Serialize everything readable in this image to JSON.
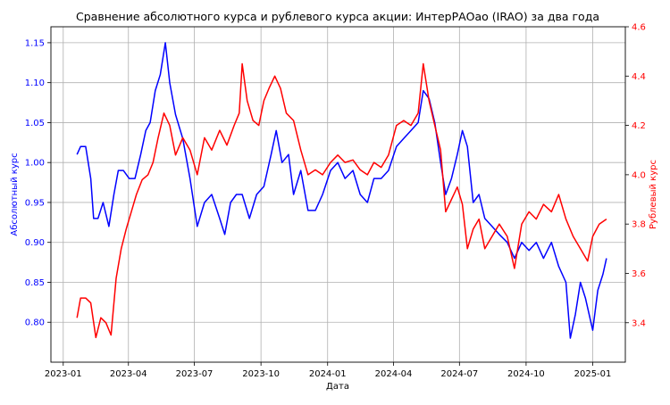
{
  "chart_data": {
    "type": "line",
    "title": "Сравнение абсолютного курса и рублевого курса акции: ИнтерРАОао (IRAO) за два года",
    "xlabel": "Дата",
    "ylabel_left": "Абсолютный курс",
    "ylabel_right": "Рублевый курс",
    "x_ticks": [
      "2023-01",
      "2023-04",
      "2023-07",
      "2023-10",
      "2024-01",
      "2024-04",
      "2024-07",
      "2024-10",
      "2025-01"
    ],
    "ylim_left": [
      0.75,
      1.17
    ],
    "ylim_right": [
      3.24,
      4.6
    ],
    "y_ticks_left": [
      "0.80",
      "0.85",
      "0.90",
      "0.95",
      "1.00",
      "1.05",
      "1.10",
      "1.15"
    ],
    "y_ticks_right": [
      "3.4",
      "3.6",
      "3.8",
      "4.0",
      "4.2",
      "4.4",
      "4.6"
    ],
    "grid": true,
    "colors": {
      "left": "#0000ff",
      "right": "#ff0000"
    },
    "series": [
      {
        "axis": "left",
        "color": "#0000ff",
        "points": [
          [
            "2023-01-20",
            1.01
          ],
          [
            "2023-01-25",
            1.02
          ],
          [
            "2023-02-01",
            1.02
          ],
          [
            "2023-02-08",
            0.98
          ],
          [
            "2023-02-12",
            0.93
          ],
          [
            "2023-02-18",
            0.93
          ],
          [
            "2023-02-25",
            0.95
          ],
          [
            "2023-03-05",
            0.92
          ],
          [
            "2023-03-12",
            0.96
          ],
          [
            "2023-03-18",
            0.99
          ],
          [
            "2023-03-25",
            0.99
          ],
          [
            "2023-04-02",
            0.98
          ],
          [
            "2023-04-10",
            0.98
          ],
          [
            "2023-04-18",
            1.01
          ],
          [
            "2023-04-25",
            1.04
          ],
          [
            "2023-05-01",
            1.05
          ],
          [
            "2023-05-08",
            1.09
          ],
          [
            "2023-05-15",
            1.11
          ],
          [
            "2023-05-22",
            1.15
          ],
          [
            "2023-05-28",
            1.1
          ],
          [
            "2023-06-05",
            1.06
          ],
          [
            "2023-06-15",
            1.03
          ],
          [
            "2023-06-25",
            0.98
          ],
          [
            "2023-07-05",
            0.92
          ],
          [
            "2023-07-15",
            0.95
          ],
          [
            "2023-07-25",
            0.96
          ],
          [
            "2023-08-05",
            0.93
          ],
          [
            "2023-08-12",
            0.91
          ],
          [
            "2023-08-20",
            0.95
          ],
          [
            "2023-08-28",
            0.96
          ],
          [
            "2023-09-05",
            0.96
          ],
          [
            "2023-09-15",
            0.93
          ],
          [
            "2023-09-25",
            0.96
          ],
          [
            "2023-10-05",
            0.97
          ],
          [
            "2023-10-15",
            1.01
          ],
          [
            "2023-10-22",
            1.04
          ],
          [
            "2023-10-30",
            1.0
          ],
          [
            "2023-11-08",
            1.01
          ],
          [
            "2023-11-15",
            0.96
          ],
          [
            "2023-11-25",
            0.99
          ],
          [
            "2023-12-05",
            0.94
          ],
          [
            "2023-12-15",
            0.94
          ],
          [
            "2023-12-25",
            0.96
          ],
          [
            "2024-01-05",
            0.99
          ],
          [
            "2024-01-15",
            1.0
          ],
          [
            "2024-01-25",
            0.98
          ],
          [
            "2024-02-05",
            0.99
          ],
          [
            "2024-02-15",
            0.96
          ],
          [
            "2024-02-25",
            0.95
          ],
          [
            "2024-03-05",
            0.98
          ],
          [
            "2024-03-15",
            0.98
          ],
          [
            "2024-03-25",
            0.99
          ],
          [
            "2024-04-05",
            1.02
          ],
          [
            "2024-04-15",
            1.03
          ],
          [
            "2024-04-25",
            1.04
          ],
          [
            "2024-05-05",
            1.05
          ],
          [
            "2024-05-12",
            1.09
          ],
          [
            "2024-05-20",
            1.08
          ],
          [
            "2024-05-28",
            1.05
          ],
          [
            "2024-06-05",
            1.0
          ],
          [
            "2024-06-12",
            0.96
          ],
          [
            "2024-06-20",
            0.98
          ],
          [
            "2024-06-28",
            1.01
          ],
          [
            "2024-07-05",
            1.04
          ],
          [
            "2024-07-12",
            1.02
          ],
          [
            "2024-07-20",
            0.95
          ],
          [
            "2024-07-28",
            0.96
          ],
          [
            "2024-08-05",
            0.93
          ],
          [
            "2024-08-15",
            0.92
          ],
          [
            "2024-08-25",
            0.91
          ],
          [
            "2024-09-05",
            0.9
          ],
          [
            "2024-09-15",
            0.88
          ],
          [
            "2024-09-25",
            0.9
          ],
          [
            "2024-10-05",
            0.89
          ],
          [
            "2024-10-15",
            0.9
          ],
          [
            "2024-10-25",
            0.88
          ],
          [
            "2024-11-05",
            0.9
          ],
          [
            "2024-11-15",
            0.87
          ],
          [
            "2024-11-25",
            0.85
          ],
          [
            "2024-12-01",
            0.78
          ],
          [
            "2024-12-08",
            0.81
          ],
          [
            "2024-12-15",
            0.85
          ],
          [
            "2024-12-22",
            0.83
          ],
          [
            "2025-01-01",
            0.79
          ],
          [
            "2025-01-08",
            0.84
          ],
          [
            "2025-01-15",
            0.86
          ],
          [
            "2025-01-20",
            0.88
          ]
        ]
      },
      {
        "axis": "right",
        "color": "#ff0000",
        "points": [
          [
            "2023-01-20",
            3.42
          ],
          [
            "2023-01-25",
            3.5
          ],
          [
            "2023-02-01",
            3.5
          ],
          [
            "2023-02-08",
            3.48
          ],
          [
            "2023-02-15",
            3.34
          ],
          [
            "2023-02-22",
            3.42
          ],
          [
            "2023-03-01",
            3.4
          ],
          [
            "2023-03-08",
            3.35
          ],
          [
            "2023-03-15",
            3.58
          ],
          [
            "2023-03-22",
            3.7
          ],
          [
            "2023-03-29",
            3.78
          ],
          [
            "2023-04-05",
            3.85
          ],
          [
            "2023-04-12",
            3.92
          ],
          [
            "2023-04-20",
            3.98
          ],
          [
            "2023-04-28",
            4.0
          ],
          [
            "2023-05-05",
            4.05
          ],
          [
            "2023-05-12",
            4.15
          ],
          [
            "2023-05-20",
            4.25
          ],
          [
            "2023-05-28",
            4.2
          ],
          [
            "2023-06-05",
            4.08
          ],
          [
            "2023-06-15",
            4.15
          ],
          [
            "2023-06-25",
            4.1
          ],
          [
            "2023-07-05",
            4.0
          ],
          [
            "2023-07-15",
            4.15
          ],
          [
            "2023-07-25",
            4.1
          ],
          [
            "2023-08-05",
            4.18
          ],
          [
            "2023-08-15",
            4.12
          ],
          [
            "2023-08-25",
            4.2
          ],
          [
            "2023-09-01",
            4.25
          ],
          [
            "2023-09-05",
            4.45
          ],
          [
            "2023-09-12",
            4.3
          ],
          [
            "2023-09-20",
            4.22
          ],
          [
            "2023-09-28",
            4.2
          ],
          [
            "2023-10-05",
            4.3
          ],
          [
            "2023-10-12",
            4.35
          ],
          [
            "2023-10-20",
            4.4
          ],
          [
            "2023-10-28",
            4.35
          ],
          [
            "2023-11-05",
            4.25
          ],
          [
            "2023-11-15",
            4.22
          ],
          [
            "2023-11-25",
            4.1
          ],
          [
            "2023-12-05",
            4.0
          ],
          [
            "2023-12-15",
            4.02
          ],
          [
            "2023-12-25",
            4.0
          ],
          [
            "2024-01-05",
            4.05
          ],
          [
            "2024-01-15",
            4.08
          ],
          [
            "2024-01-25",
            4.05
          ],
          [
            "2024-02-05",
            4.06
          ],
          [
            "2024-02-15",
            4.02
          ],
          [
            "2024-02-25",
            4.0
          ],
          [
            "2024-03-05",
            4.05
          ],
          [
            "2024-03-15",
            4.03
          ],
          [
            "2024-03-25",
            4.08
          ],
          [
            "2024-04-05",
            4.2
          ],
          [
            "2024-04-15",
            4.22
          ],
          [
            "2024-04-25",
            4.2
          ],
          [
            "2024-05-05",
            4.25
          ],
          [
            "2024-05-12",
            4.45
          ],
          [
            "2024-05-20",
            4.3
          ],
          [
            "2024-05-28",
            4.2
          ],
          [
            "2024-06-05",
            4.1
          ],
          [
            "2024-06-12",
            3.85
          ],
          [
            "2024-06-20",
            3.9
          ],
          [
            "2024-06-28",
            3.95
          ],
          [
            "2024-07-05",
            3.88
          ],
          [
            "2024-07-12",
            3.7
          ],
          [
            "2024-07-20",
            3.78
          ],
          [
            "2024-07-28",
            3.82
          ],
          [
            "2024-08-05",
            3.7
          ],
          [
            "2024-08-15",
            3.75
          ],
          [
            "2024-08-25",
            3.8
          ],
          [
            "2024-09-05",
            3.75
          ],
          [
            "2024-09-15",
            3.62
          ],
          [
            "2024-09-25",
            3.8
          ],
          [
            "2024-10-05",
            3.85
          ],
          [
            "2024-10-15",
            3.82
          ],
          [
            "2024-10-25",
            3.88
          ],
          [
            "2024-11-05",
            3.85
          ],
          [
            "2024-11-15",
            3.92
          ],
          [
            "2024-11-25",
            3.82
          ],
          [
            "2024-12-05",
            3.75
          ],
          [
            "2024-12-15",
            3.7
          ],
          [
            "2024-12-25",
            3.65
          ],
          [
            "2025-01-01",
            3.75
          ],
          [
            "2025-01-10",
            3.8
          ],
          [
            "2025-01-20",
            3.82
          ]
        ]
      }
    ]
  }
}
